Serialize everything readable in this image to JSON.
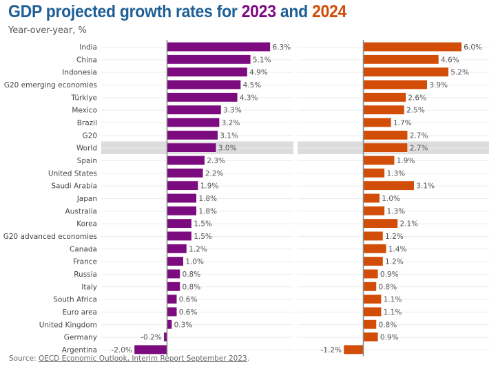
{
  "chart_data": {
    "type": "bar",
    "orientation": "horizontal",
    "title": "GDP projected growth rates for 2023 and 2024",
    "title_parts": {
      "prefix": "GDP projected growth rates for ",
      "year1": "2023",
      "middle": " and ",
      "year2": "2024"
    },
    "subtitle": "Year-over-year, %",
    "xlabel": "",
    "ylabel": "",
    "value_suffix": "%",
    "grid": true,
    "highlight_category": "World",
    "categories": [
      "India",
      "China",
      "Indonesia",
      "G20 emerging economies",
      "Türkiye",
      "Mexico",
      "Brazil",
      "G20",
      "World",
      "Spain",
      "United States",
      "Saudi Arabia",
      "Japan",
      "Australia",
      "Korea",
      "G20 advanced economies",
      "Canada",
      "France",
      "Russia",
      "Italy",
      "South Africa",
      "Euro area",
      "United Kingdom",
      "Germany",
      "Argentina"
    ],
    "series": [
      {
        "name": "2023",
        "color": "#7c0b7f",
        "values": [
          6.3,
          5.1,
          4.9,
          4.5,
          4.3,
          3.3,
          3.2,
          3.1,
          3.0,
          2.3,
          2.2,
          1.9,
          1.8,
          1.8,
          1.5,
          1.5,
          1.2,
          1.0,
          0.8,
          0.8,
          0.6,
          0.6,
          0.3,
          -0.2,
          -2.0
        ],
        "labels": [
          "6.3%",
          "5.1%",
          "4.9%",
          "4.5%",
          "4.3%",
          "3.3%",
          "3.2%",
          "3.1%",
          "3.0%",
          "2.3%",
          "2.2%",
          "1.9%",
          "1.8%",
          "1.8%",
          "1.5%",
          "1.5%",
          "1.2%",
          "1.0%",
          "0.8%",
          "0.8%",
          "0.6%",
          "0.6%",
          "0.3%",
          "-0.2%",
          "-2.0%"
        ]
      },
      {
        "name": "2024",
        "color": "#d24d07",
        "values": [
          6.0,
          4.6,
          5.2,
          3.9,
          2.6,
          2.5,
          1.7,
          2.7,
          2.7,
          1.9,
          1.3,
          3.1,
          1.0,
          1.3,
          2.1,
          1.2,
          1.4,
          1.2,
          0.9,
          0.8,
          1.1,
          1.1,
          0.8,
          0.9,
          -1.2
        ],
        "labels": [
          "6.0%",
          "4.6%",
          "5.2%",
          "3.9%",
          "2.6%",
          "2.5%",
          "1.7%",
          "2.7%",
          "2.7%",
          "1.9%",
          "1.3%",
          "3.1%",
          "1.0%",
          "1.3%",
          "2.1%",
          "1.2%",
          "1.4%",
          "1.2%",
          "0.9%",
          "0.8%",
          "1.1%",
          "1.1%",
          "0.8%",
          "0.9%",
          "-1.2%"
        ]
      }
    ],
    "xlim": [
      -4.0,
      7.3
    ]
  },
  "source": {
    "prefix": "Source: ",
    "link_text": "OECD Economic Outlook, Interim Report September 2023",
    "suffix": "."
  },
  "colors": {
    "title": "#1d5f96",
    "year_2023": "#7c0b7f",
    "year_2024": "#d24d07",
    "highlight_band": "#dcdcdc",
    "gridline": "#ececec",
    "axis": "#888888"
  }
}
